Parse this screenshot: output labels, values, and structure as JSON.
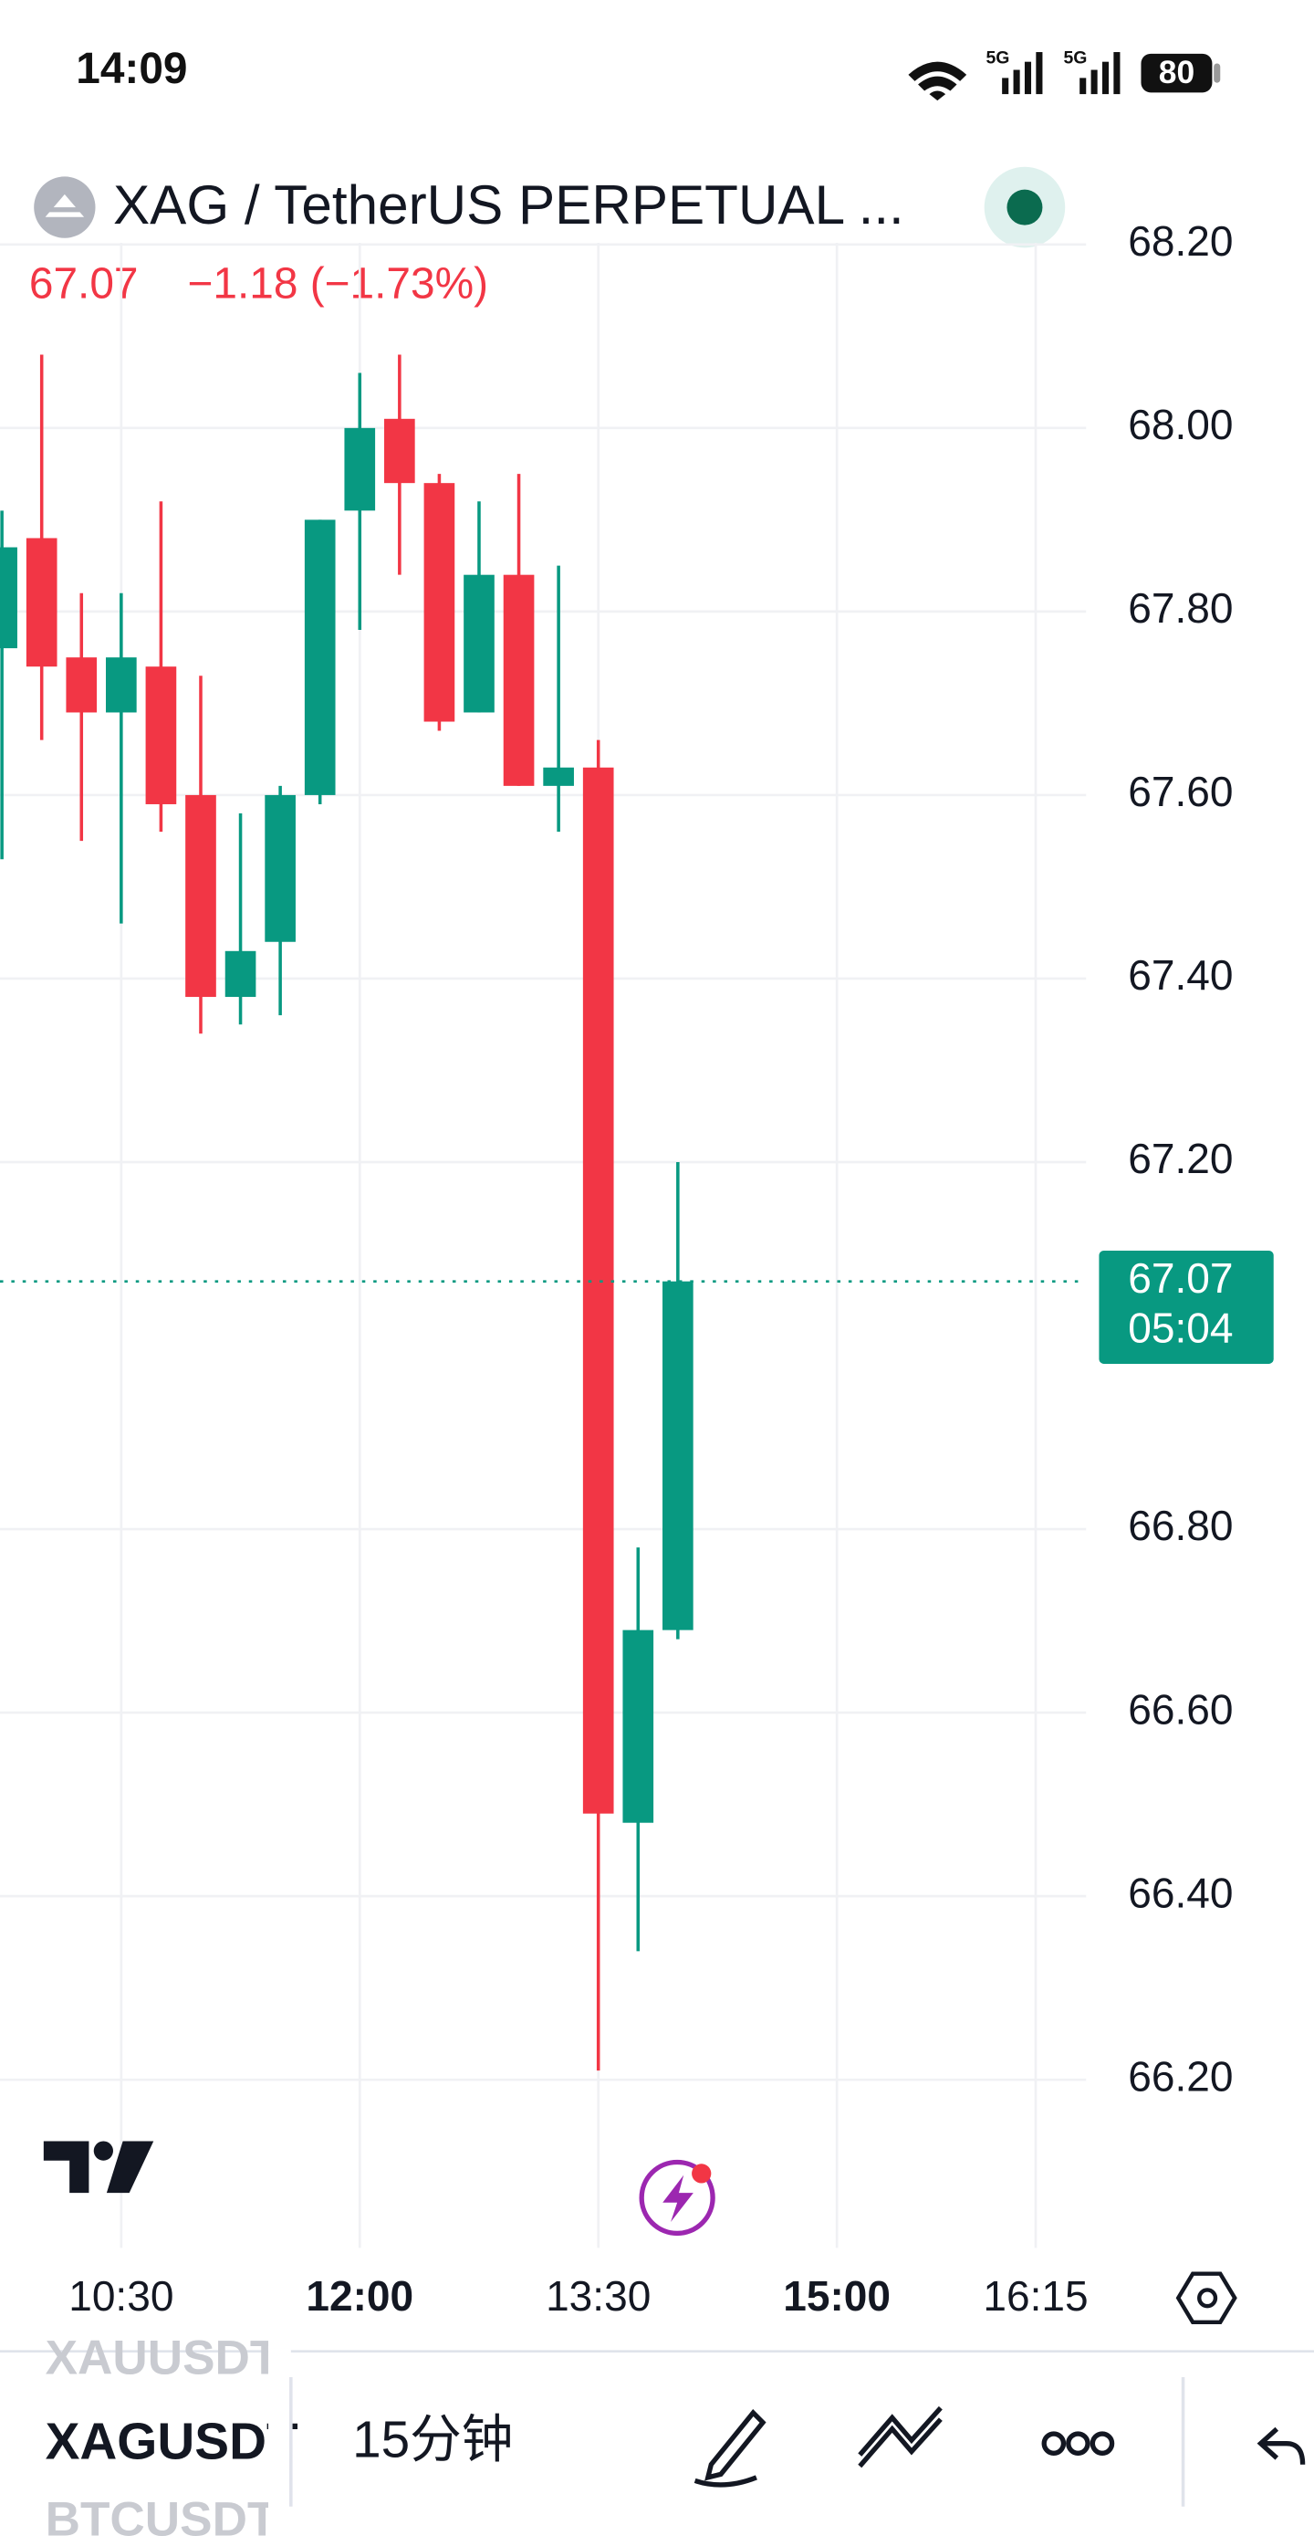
{
  "status_bar": {
    "time": "14:09",
    "battery": "80"
  },
  "header": {
    "symbol_title": "XAG / TetherUS PERPETUAL ...",
    "price": "67.07",
    "change": "−1.18 (−1.73%)"
  },
  "chart_data": {
    "type": "candlestick",
    "categories": [
      null,
      null,
      null,
      "10:30",
      null,
      null,
      null,
      null,
      null,
      "12:00",
      null,
      null,
      null,
      null,
      null,
      "13:30",
      null,
      null,
      null,
      null,
      null,
      "15:00",
      null,
      null,
      null,
      null,
      "16:15"
    ],
    "open": [
      67.76,
      67.88,
      67.75,
      67.69,
      67.74,
      67.6,
      67.38,
      67.44,
      67.6,
      67.91,
      68.01,
      67.94,
      67.69,
      67.84,
      67.61,
      67.63,
      66.48,
      66.69,
      null,
      null,
      null,
      null,
      null,
      null,
      null,
      null,
      null
    ],
    "high": [
      67.91,
      68.08,
      67.82,
      67.82,
      67.92,
      67.73,
      67.58,
      67.61,
      67.9,
      68.06,
      68.08,
      67.95,
      67.92,
      67.95,
      67.85,
      67.66,
      66.78,
      67.2,
      null,
      null,
      null,
      null,
      null,
      null,
      null,
      null,
      null
    ],
    "low": [
      67.53,
      67.66,
      67.55,
      67.46,
      67.56,
      67.34,
      67.35,
      67.36,
      67.59,
      67.78,
      67.84,
      67.67,
      67.69,
      67.61,
      67.56,
      66.21,
      66.34,
      66.68,
      null,
      null,
      null,
      null,
      null,
      null,
      null,
      null,
      null
    ],
    "close": [
      67.87,
      67.74,
      67.69,
      67.75,
      67.59,
      67.38,
      67.43,
      67.6,
      67.9,
      68.0,
      67.94,
      67.68,
      67.84,
      67.61,
      67.63,
      66.49,
      66.69,
      67.07,
      null,
      null,
      null,
      null,
      null,
      null,
      null,
      null,
      null
    ],
    "up_color": "#089981",
    "down_color": "#f23645",
    "ylim": [
      66.2,
      68.2
    ],
    "yticks": [
      {
        "value": 66.2,
        "label": "66.20"
      },
      {
        "value": 66.4,
        "label": "66.40"
      },
      {
        "value": 66.6,
        "label": "66.60"
      },
      {
        "value": 66.8,
        "label": "66.80"
      },
      {
        "value": 67.2,
        "label": "67.20"
      },
      {
        "value": 67.4,
        "label": "67.40"
      },
      {
        "value": 67.6,
        "label": "67.60"
      },
      {
        "value": 67.8,
        "label": "67.80"
      },
      {
        "value": 68.0,
        "label": "68.00"
      },
      {
        "value": 68.2,
        "label": "68.20"
      }
    ],
    "grid": true,
    "last_price": {
      "value": 67.07,
      "label": "67.07"
    },
    "countdown": "05:04"
  },
  "toolbar": {
    "symbols": [
      "XAUUSDT",
      "XAGUSDT",
      "BTCUSDT"
    ],
    "interval": "15分钟"
  }
}
